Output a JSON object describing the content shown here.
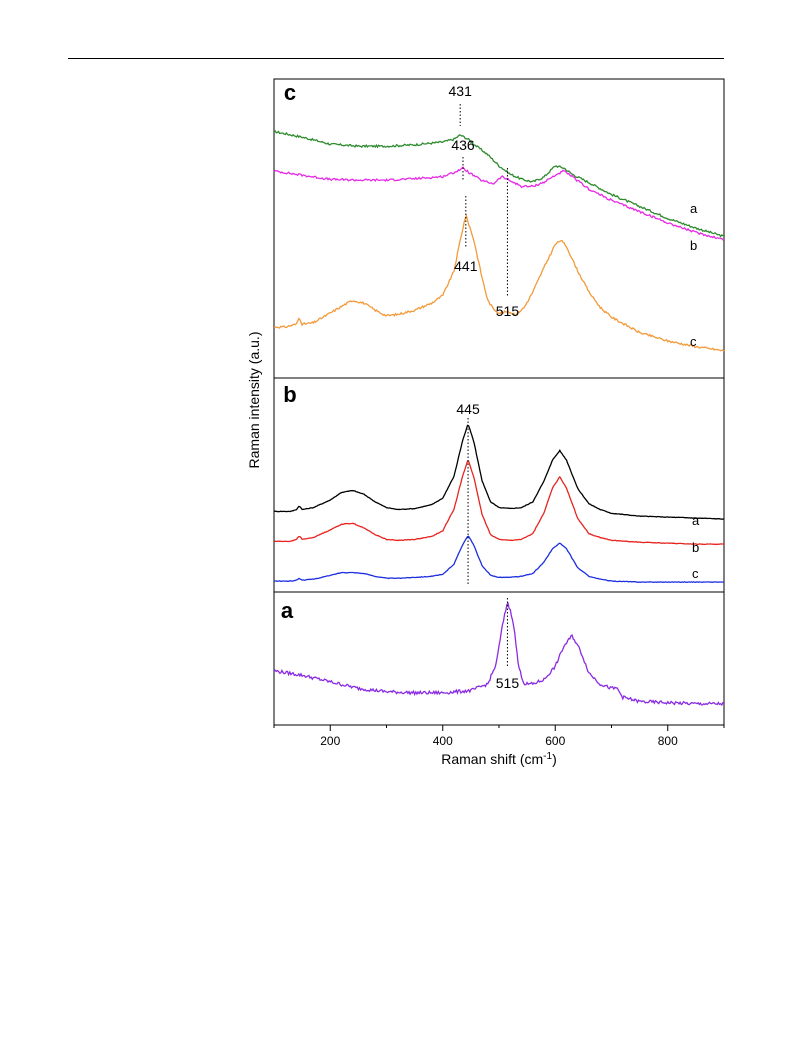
{
  "chart_data": {
    "type": "line",
    "xlabel": "Raman shift (cm",
    "xlabel_sup": "-1",
    "xlabel_close": ")",
    "ylabel": "Raman intensity (a.u.)",
    "xlim": [
      100,
      900
    ],
    "xticks": [
      200,
      400,
      600,
      800
    ],
    "grid": false,
    "panels": [
      {
        "panel_label": "c",
        "series": [
          {
            "name": "a",
            "color": "#2e8b2e",
            "x": [
              100,
              150,
              200,
              250,
              300,
              350,
              400,
              420,
              431,
              445,
              460,
              480,
              500,
              520,
              540,
              560,
              580,
              600,
              615,
              630,
              660,
              700,
              750,
              800,
              850,
              900
            ],
            "y": [
              0.55,
              0.47,
              0.37,
              0.34,
              0.34,
              0.36,
              0.4,
              0.44,
              0.5,
              0.44,
              0.34,
              0.22,
              0.06,
              -0.06,
              -0.13,
              -0.17,
              -0.1,
              0.06,
              0.03,
              -0.06,
              -0.18,
              -0.35,
              -0.52,
              -0.69,
              -0.83,
              -0.95
            ]
          },
          {
            "name": "b",
            "color": "#e62ae6",
            "x": [
              100,
              150,
              200,
              250,
              300,
              350,
              400,
              420,
              436,
              450,
              470,
              490,
              505,
              520,
              540,
              560,
              580,
              600,
              615,
              630,
              660,
              700,
              750,
              800,
              850,
              900
            ],
            "y": [
              0.3,
              0.24,
              0.18,
              0.17,
              0.17,
              0.19,
              0.22,
              0.28,
              0.34,
              0.26,
              0.16,
              0.12,
              0.22,
              0.16,
              0.08,
              0.08,
              0.14,
              0.24,
              0.3,
              0.22,
              0.04,
              -0.12,
              -0.28,
              -0.44,
              -0.58,
              -0.68
            ]
          },
          {
            "name": "c",
            "color": "#f39a3a",
            "x": [
              100,
              120,
              140,
              145,
              150,
              170,
              200,
              230,
              240,
              260,
              280,
              300,
              320,
              350,
              380,
              400,
              420,
              430,
              441,
              455,
              470,
              480,
              490,
              500,
              515,
              530,
              545,
              560,
              580,
              600,
              610,
              620,
              640,
              660,
              680,
              700,
              750,
              800,
              850,
              900
            ],
            "y": [
              -0.9,
              -0.9,
              -0.86,
              -0.76,
              -0.86,
              -0.84,
              -0.7,
              -0.56,
              -0.52,
              -0.56,
              -0.66,
              -0.74,
              -0.72,
              -0.66,
              -0.56,
              -0.45,
              -0.1,
              0.3,
              0.7,
              0.35,
              -0.2,
              -0.52,
              -0.64,
              -0.7,
              -0.68,
              -0.72,
              -0.62,
              -0.4,
              -0.05,
              0.28,
              0.34,
              0.25,
              -0.1,
              -0.4,
              -0.62,
              -0.76,
              -0.98,
              -1.1,
              -1.18,
              -1.24
            ]
          }
        ],
        "annotations": [
          {
            "text": "431",
            "x": 431
          },
          {
            "text": "436",
            "x": 436
          },
          {
            "text": "441",
            "x": 441
          },
          {
            "text": "515",
            "x": 515
          }
        ]
      },
      {
        "panel_label": "b",
        "series": [
          {
            "name": "a",
            "color": "#000000",
            "x": [
              100,
              130,
              140,
              145,
              150,
              170,
              200,
              220,
              240,
              260,
              280,
              300,
              320,
              350,
              380,
              400,
              420,
              435,
              445,
              455,
              470,
              485,
              500,
              520,
              540,
              560,
              580,
              595,
              608,
              620,
              640,
              660,
              680,
              700,
              750,
              800,
              850,
              900
            ],
            "y": [
              0.08,
              0.08,
              0.1,
              0.14,
              0.1,
              0.12,
              0.2,
              0.28,
              0.3,
              0.26,
              0.18,
              0.12,
              0.1,
              0.11,
              0.15,
              0.22,
              0.45,
              0.82,
              1.0,
              0.82,
              0.4,
              0.18,
              0.12,
              0.11,
              0.12,
              0.18,
              0.4,
              0.62,
              0.72,
              0.62,
              0.32,
              0.16,
              0.1,
              0.06,
              0.03,
              0.02,
              0.01,
              0.0
            ]
          },
          {
            "name": "b",
            "color": "#e8241f",
            "x": [
              100,
              130,
              140,
              145,
              150,
              170,
              200,
              220,
              240,
              260,
              280,
              300,
              320,
              350,
              380,
              400,
              420,
              435,
              445,
              455,
              470,
              485,
              500,
              520,
              540,
              560,
              580,
              595,
              608,
              620,
              640,
              660,
              680,
              700,
              750,
              800,
              850,
              900
            ],
            "y": [
              0.06,
              0.06,
              0.08,
              0.12,
              0.08,
              0.1,
              0.18,
              0.24,
              0.25,
              0.2,
              0.13,
              0.08,
              0.07,
              0.08,
              0.11,
              0.17,
              0.4,
              0.74,
              0.92,
              0.74,
              0.34,
              0.13,
              0.08,
              0.07,
              0.08,
              0.14,
              0.36,
              0.62,
              0.74,
              0.62,
              0.3,
              0.14,
              0.1,
              0.07,
              0.05,
              0.04,
              0.03,
              0.03
            ]
          },
          {
            "name": "c",
            "color": "#1c2ee0",
            "x": [
              100,
              130,
              140,
              145,
              150,
              170,
              200,
              220,
              240,
              260,
              280,
              300,
              320,
              350,
              380,
              400,
              420,
              435,
              445,
              455,
              470,
              485,
              500,
              520,
              540,
              560,
              580,
              595,
              608,
              620,
              640,
              660,
              680,
              700,
              750,
              800,
              850,
              900
            ],
            "y": [
              0.02,
              0.02,
              0.03,
              0.05,
              0.03,
              0.04,
              0.08,
              0.11,
              0.11,
              0.1,
              0.07,
              0.05,
              0.05,
              0.06,
              0.07,
              0.09,
              0.2,
              0.4,
              0.5,
              0.4,
              0.18,
              0.08,
              0.06,
              0.06,
              0.07,
              0.1,
              0.22,
              0.36,
              0.42,
              0.36,
              0.16,
              0.07,
              0.04,
              0.02,
              0.01,
              0.01,
              0.01,
              0.01
            ]
          }
        ],
        "annotations": [
          {
            "text": "445",
            "x": 445
          }
        ]
      },
      {
        "panel_label": "a",
        "series": [
          {
            "name": "",
            "color": "#8a2be2",
            "x": [
              100,
              150,
              200,
              250,
              300,
              350,
              400,
              450,
              480,
              495,
              505,
              515,
              525,
              535,
              545,
              560,
              580,
              600,
              615,
              630,
              645,
              660,
              680,
              700,
              710,
              720,
              750,
              800,
              850,
              900
            ],
            "y": [
              0.32,
              0.28,
              0.22,
              0.16,
              0.13,
              0.12,
              0.12,
              0.14,
              0.2,
              0.38,
              0.7,
              0.95,
              0.78,
              0.35,
              0.2,
              0.2,
              0.24,
              0.36,
              0.54,
              0.64,
              0.5,
              0.3,
              0.2,
              0.16,
              0.16,
              0.08,
              0.04,
              0.03,
              0.02,
              0.02
            ]
          }
        ],
        "annotations": [
          {
            "text": "515",
            "x": 515
          }
        ]
      }
    ]
  }
}
